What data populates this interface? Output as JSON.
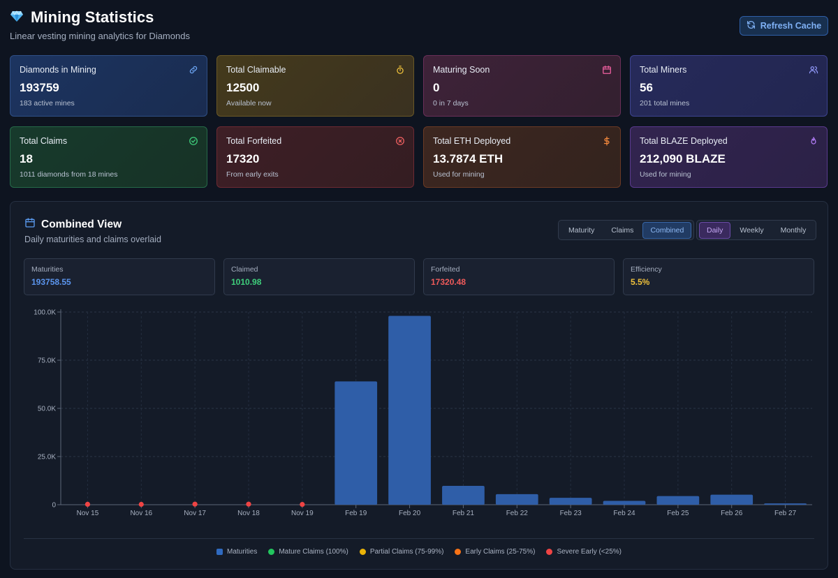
{
  "header": {
    "title": "Mining Statistics",
    "subtitle": "Linear vesting mining analytics for Diamonds",
    "refresh_label": "Refresh Cache"
  },
  "cards": [
    {
      "label": "Diamonds in Mining",
      "value": "193759",
      "sub": "183 active mines",
      "icon": "link-icon",
      "theme": "t-blue",
      "icon_color": "#6ea8f7"
    },
    {
      "label": "Total Claimable",
      "value": "12500",
      "sub": "Available now",
      "icon": "timer-icon",
      "theme": "t-yellow",
      "icon_color": "#f0c23b"
    },
    {
      "label": "Maturing Soon",
      "value": "0",
      "sub": "0 in 7 days",
      "icon": "calendar-icon",
      "theme": "t-pink",
      "icon_color": "#ef5fa0"
    },
    {
      "label": "Total Miners",
      "value": "56",
      "sub": "201 total mines",
      "icon": "users-icon",
      "theme": "t-indigo",
      "icon_color": "#8f96f5"
    },
    {
      "label": "Total Claims",
      "value": "18",
      "sub": "1011 diamonds from 18 mines",
      "icon": "check-circle-icon",
      "theme": "t-green",
      "icon_color": "#3fcf7c"
    },
    {
      "label": "Total Forfeited",
      "value": "17320",
      "sub": "From early exits",
      "icon": "x-circle-icon",
      "theme": "t-red",
      "icon_color": "#f06161"
    },
    {
      "label": "Total ETH Deployed",
      "value": "13.7874 ETH",
      "sub": "Used for mining",
      "icon": "dollar-icon",
      "theme": "t-orange",
      "icon_color": "#f5893d"
    },
    {
      "label": "Total BLAZE Deployed",
      "value": "212,090 BLAZE",
      "sub": "Used for mining",
      "icon": "flame-icon",
      "theme": "t-purple",
      "icon_color": "#b07cf5"
    }
  ],
  "panel": {
    "title": "Combined View",
    "subtitle": "Daily maturities and claims overlaid",
    "view_tabs": [
      "Maturity",
      "Claims",
      "Combined"
    ],
    "active_view": "Combined",
    "period_tabs": [
      "Daily",
      "Weekly",
      "Monthly"
    ],
    "active_period": "Daily",
    "stats": [
      {
        "label": "Maturities",
        "value": "193758.55",
        "color": "#5b95ee"
      },
      {
        "label": "Claimed",
        "value": "1010.98",
        "color": "#3fcf7c"
      },
      {
        "label": "Forfeited",
        "value": "17320.48",
        "color": "#ef5a5a"
      },
      {
        "label": "Efficiency",
        "value": "5.5%",
        "color": "#f0c23b"
      }
    ]
  },
  "chart_data": {
    "type": "bar",
    "title": "",
    "categories": [
      "Nov 15",
      "Nov 16",
      "Nov 17",
      "Nov 18",
      "Nov 19",
      "Feb 19",
      "Feb 20",
      "Feb 21",
      "Feb 22",
      "Feb 23",
      "Feb 24",
      "Feb 25",
      "Feb 26",
      "Feb 27"
    ],
    "series": [
      {
        "name": "Maturities",
        "type": "bar",
        "color": "#2f5ea8",
        "values": [
          0,
          0,
          0,
          0,
          0,
          64000,
          98000,
          9800,
          5500,
          3600,
          2000,
          4500,
          5200,
          700
        ]
      },
      {
        "name": "Severe Early (<25%)",
        "type": "point",
        "color": "#ef4444",
        "values": [
          220,
          180,
          300,
          300,
          150,
          null,
          null,
          null,
          null,
          null,
          null,
          null,
          null,
          null
        ]
      }
    ],
    "yticks": [
      0,
      25000,
      50000,
      75000,
      100000
    ],
    "ytick_labels": [
      "0",
      "25.0K",
      "50.0K",
      "75.0K",
      "100.0K"
    ],
    "ylim": [
      0,
      100000
    ],
    "grid": true,
    "legend": [
      {
        "name": "Maturities",
        "color": "#2f6ac0",
        "shape": "square"
      },
      {
        "name": "Mature Claims (100%)",
        "color": "#22c55e",
        "shape": "dot"
      },
      {
        "name": "Partial Claims (75-99%)",
        "color": "#eab308",
        "shape": "dot"
      },
      {
        "name": "Early Claims (25-75%)",
        "color": "#f97316",
        "shape": "dot"
      },
      {
        "name": "Severe Early (<25%)",
        "color": "#ef4444",
        "shape": "dot"
      }
    ]
  }
}
